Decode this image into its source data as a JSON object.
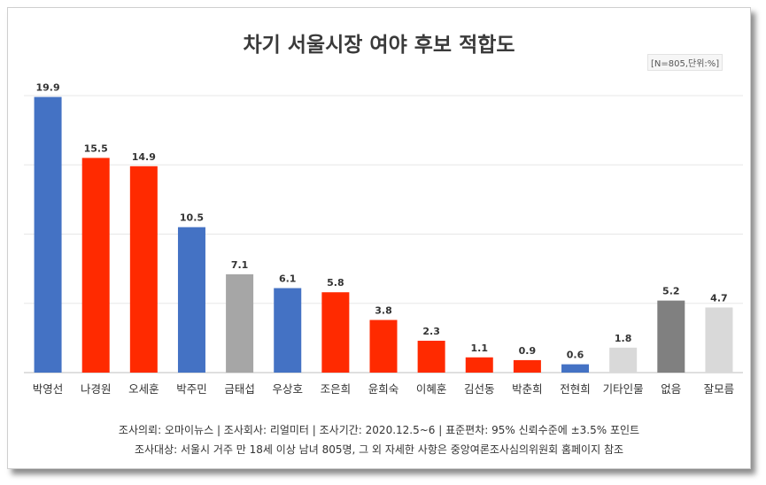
{
  "title": "차기 서울시장 여야 후보 적합도",
  "unit_note": "[N=805,단위:%]",
  "colors": {
    "blue": "#4472c4",
    "red": "#ff2a00",
    "gray": "#a6a6a6",
    "light_gray": "#d9d9d9",
    "dark_gray": "#808080",
    "grid": "#e7e7e7",
    "axis": "#bfbfbf",
    "label_text": "#333333"
  },
  "chart_data": {
    "type": "bar",
    "categories": [
      "박영선",
      "나경원",
      "오세훈",
      "박주민",
      "금태섭",
      "우상호",
      "조은희",
      "윤희숙",
      "이혜훈",
      "김선동",
      "박춘희",
      "전현희",
      "기타인물",
      "없음",
      "잘모름"
    ],
    "values": [
      19.9,
      15.5,
      14.9,
      10.5,
      7.1,
      6.1,
      5.8,
      3.8,
      2.3,
      1.1,
      0.9,
      0.6,
      1.8,
      5.2,
      4.7
    ],
    "value_labels": [
      "19.9",
      "15.5",
      "14.9",
      "10.5",
      "7.1",
      "6.1",
      "5.8",
      "3.8",
      "2.3",
      "1.1",
      "0.9",
      "0.6",
      "1.8",
      "5.2",
      "4.7"
    ],
    "bar_colors": [
      "blue",
      "red",
      "red",
      "blue",
      "gray",
      "blue",
      "red",
      "red",
      "red",
      "red",
      "red",
      "blue",
      "light_gray",
      "dark_gray",
      "light_gray"
    ],
    "ylim": [
      0,
      20
    ],
    "gridlines": [
      5,
      10,
      15,
      20
    ],
    "grid": true,
    "legend": "none"
  },
  "notes": {
    "line1": "조사의뢰: 오마이뉴스 | 조사회사: 리얼미터 | 조사기간: 2020.12.5~6 | 표준편차: 95% 신뢰수준에 ±3.5% 포인트",
    "line2": "조사대상: 서울시 거주 만 18세 이상 남녀 805명, 그 외 자세한 사항은 중앙여론조사심의위원회 홈페이지 참조"
  }
}
